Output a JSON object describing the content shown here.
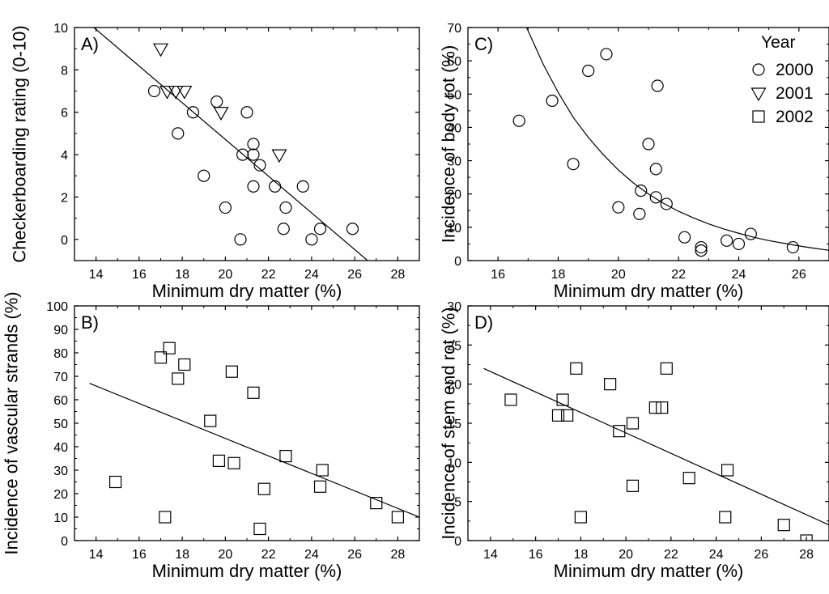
{
  "chart_data": [
    {
      "panel": "A)",
      "type": "scatter",
      "xlabel": "Minimum dry matter (%)",
      "ylabel": "Checkerboarding rating (0-10)",
      "xlim": [
        13,
        29
      ],
      "ylim": [
        -1,
        10
      ],
      "xticks": [
        14,
        16,
        18,
        20,
        22,
        24,
        26,
        28
      ],
      "yticks": [
        0,
        2,
        4,
        6,
        8,
        10
      ],
      "series": [
        {
          "name": "2000",
          "marker": "circle",
          "points": [
            [
              16.7,
              7
            ],
            [
              17.8,
              5
            ],
            [
              18.5,
              6
            ],
            [
              19.0,
              3
            ],
            [
              19.6,
              6.5
            ],
            [
              20.0,
              1.5
            ],
            [
              20.7,
              0
            ],
            [
              20.8,
              4
            ],
            [
              21.0,
              6
            ],
            [
              21.3,
              4.5
            ],
            [
              21.3,
              4
            ],
            [
              21.3,
              2.5
            ],
            [
              21.6,
              3.5
            ],
            [
              22.3,
              2.5
            ],
            [
              22.7,
              0.5
            ],
            [
              22.8,
              1.5
            ],
            [
              23.6,
              2.5
            ],
            [
              24.0,
              0
            ],
            [
              24.4,
              0.5
            ],
            [
              25.9,
              0.5
            ]
          ]
        },
        {
          "name": "2001",
          "marker": "triangle-down",
          "points": [
            [
              17.0,
              9
            ],
            [
              17.3,
              7
            ],
            [
              17.7,
              7
            ],
            [
              18.1,
              7
            ],
            [
              19.8,
              6
            ],
            [
              22.5,
              4
            ]
          ]
        }
      ],
      "fit": {
        "x": [
          13.9,
          26.6
        ],
        "y": [
          10,
          -1
        ]
      }
    },
    {
      "panel": "C)",
      "type": "scatter",
      "xlabel": "Minimum dry matter (%)",
      "ylabel": "Incidence of body rot (%)",
      "xlim": [
        15,
        27
      ],
      "ylim": [
        0,
        70
      ],
      "xticks": [
        16,
        18,
        20,
        22,
        24,
        26
      ],
      "yticks": [
        0,
        10,
        20,
        30,
        40,
        50,
        60,
        70
      ],
      "series": [
        {
          "name": "2000",
          "marker": "circle",
          "points": [
            [
              16.7,
              42
            ],
            [
              17.8,
              48
            ],
            [
              18.5,
              29
            ],
            [
              19.0,
              57
            ],
            [
              19.6,
              62
            ],
            [
              20.0,
              16
            ],
            [
              20.7,
              14
            ],
            [
              20.75,
              21
            ],
            [
              21.0,
              35
            ],
            [
              21.25,
              27.5
            ],
            [
              21.25,
              19
            ],
            [
              21.3,
              52.5
            ],
            [
              21.6,
              17
            ],
            [
              22.2,
              7
            ],
            [
              22.75,
              3
            ],
            [
              22.75,
              4
            ],
            [
              23.6,
              6
            ],
            [
              24.0,
              5
            ],
            [
              24.4,
              8
            ],
            [
              25.8,
              4
            ]
          ]
        }
      ],
      "fit": {
        "type": "exponential",
        "x": [
          16.95,
          17.5,
          18,
          18.5,
          19,
          19.5,
          20,
          20.5,
          21,
          21.5,
          22,
          22.5,
          23,
          23.5,
          24,
          24.5,
          25,
          25.5,
          26,
          26.5,
          27
        ],
        "y": [
          70,
          59,
          50.5,
          43,
          37,
          31.8,
          27.2,
          23.3,
          20,
          17.2,
          14.8,
          12.8,
          11,
          9.5,
          8.2,
          7,
          6,
          5.2,
          4.4,
          3.7,
          3.1
        ]
      }
    },
    {
      "panel": "B)",
      "type": "scatter",
      "xlabel": "Minimum dry matter (%)",
      "ylabel": "Incidence of vascular strands (%)",
      "xlim": [
        13,
        29
      ],
      "ylim": [
        0,
        100
      ],
      "xticks": [
        14,
        16,
        18,
        20,
        22,
        24,
        26,
        28
      ],
      "yticks": [
        0,
        10,
        20,
        30,
        40,
        50,
        60,
        70,
        80,
        90,
        100
      ],
      "series": [
        {
          "name": "2002",
          "marker": "square",
          "points": [
            [
              14.9,
              25
            ],
            [
              17.0,
              78
            ],
            [
              17.2,
              10
            ],
            [
              17.4,
              82
            ],
            [
              17.8,
              69
            ],
            [
              18.1,
              75
            ],
            [
              19.3,
              51
            ],
            [
              19.7,
              34
            ],
            [
              20.3,
              72
            ],
            [
              20.4,
              33
            ],
            [
              21.3,
              63
            ],
            [
              21.6,
              5
            ],
            [
              21.8,
              22
            ],
            [
              22.8,
              36
            ],
            [
              24.4,
              23
            ],
            [
              24.5,
              30
            ],
            [
              27.0,
              16
            ],
            [
              28.0,
              10
            ]
          ]
        }
      ],
      "fit": {
        "x": [
          13.7,
          29
        ],
        "y": [
          67,
          10
        ]
      }
    },
    {
      "panel": "D)",
      "type": "scatter",
      "xlabel": "Minimum dry matter (%)",
      "ylabel": "Incidence of stem end rot (%)",
      "xlim": [
        13,
        29
      ],
      "ylim": [
        0,
        30
      ],
      "xticks": [
        14,
        16,
        18,
        20,
        22,
        24,
        26,
        28
      ],
      "yticks": [
        0,
        5,
        10,
        15,
        20,
        25,
        30
      ],
      "series": [
        {
          "name": "2002",
          "marker": "square",
          "points": [
            [
              14.9,
              18
            ],
            [
              17.0,
              16
            ],
            [
              17.2,
              18
            ],
            [
              17.4,
              16
            ],
            [
              17.8,
              22
            ],
            [
              18.0,
              3
            ],
            [
              19.3,
              20
            ],
            [
              19.7,
              14
            ],
            [
              20.3,
              15
            ],
            [
              20.3,
              7
            ],
            [
              21.3,
              17
            ],
            [
              21.6,
              17
            ],
            [
              21.8,
              22
            ],
            [
              22.8,
              8
            ],
            [
              24.4,
              3
            ],
            [
              24.5,
              9
            ],
            [
              27.0,
              2
            ],
            [
              28.0,
              0
            ]
          ]
        }
      ],
      "fit": {
        "x": [
          13.7,
          29
        ],
        "y": [
          22,
          2
        ]
      }
    }
  ],
  "legend": {
    "title": "Year",
    "entries": [
      {
        "label": "2000",
        "marker": "circle"
      },
      {
        "label": "2001",
        "marker": "triangle-down"
      },
      {
        "label": "2002",
        "marker": "square"
      }
    ],
    "placement": "top-right of panel C"
  }
}
